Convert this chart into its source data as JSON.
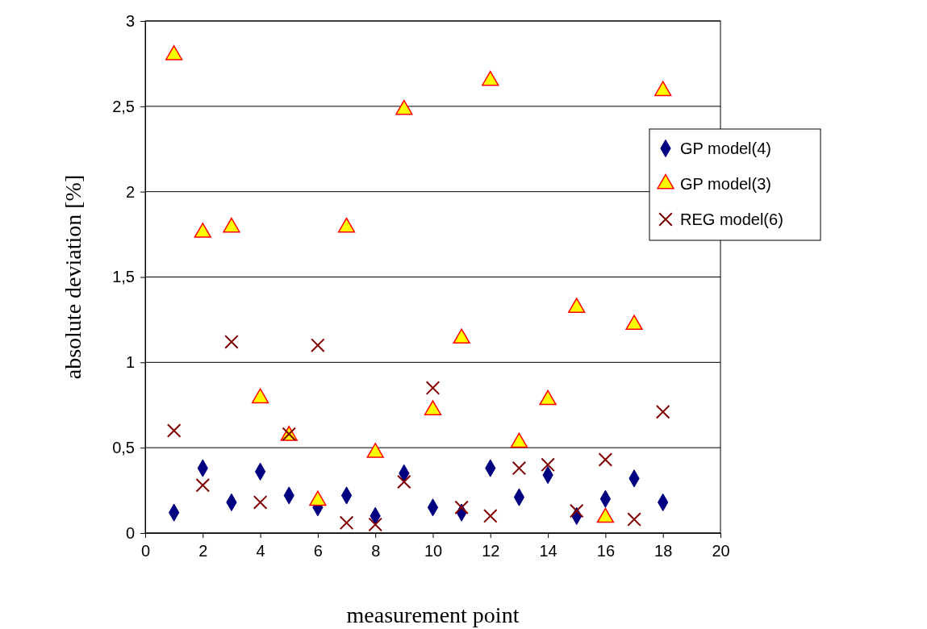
{
  "chart_data": {
    "type": "scatter",
    "xlabel": "measurement point",
    "ylabel": "absolute deviation [%]",
    "x": [
      1,
      2,
      3,
      4,
      5,
      6,
      7,
      8,
      9,
      10,
      11,
      12,
      13,
      14,
      15,
      16,
      17,
      18
    ],
    "xlim": [
      0,
      20
    ],
    "xticks": [
      0,
      2,
      4,
      6,
      8,
      10,
      12,
      14,
      16,
      18,
      20
    ],
    "ylim": [
      0,
      3
    ],
    "yticks": [
      0,
      {
        "value": 0.5,
        "label": "0,5"
      },
      1,
      {
        "value": 1.5,
        "label": "1,5"
      },
      2,
      {
        "value": 2.5,
        "label": "2,5"
      },
      3
    ],
    "grid": "y",
    "legend": "right",
    "series": [
      {
        "name": "GP model(4)",
        "color": "#000080",
        "marker": "diamond",
        "values": [
          0.12,
          0.38,
          0.18,
          0.36,
          0.22,
          0.15,
          0.22,
          0.1,
          0.35,
          0.15,
          0.12,
          0.38,
          0.21,
          0.34,
          0.1,
          0.2,
          0.32,
          0.18
        ]
      },
      {
        "name": "GP model(3)",
        "color": "#ffff00",
        "marker": "triangle",
        "values": [
          2.81,
          1.77,
          1.8,
          0.8,
          0.58,
          0.2,
          1.8,
          0.48,
          2.49,
          0.73,
          1.15,
          2.66,
          0.54,
          0.79,
          1.33,
          0.1,
          1.23,
          2.6
        ]
      },
      {
        "name": "REG model(6)",
        "color": "#800000",
        "marker": "cross",
        "values": [
          0.6,
          0.28,
          1.12,
          0.18,
          0.58,
          1.1,
          0.06,
          0.05,
          0.3,
          0.85,
          0.15,
          0.1,
          0.38,
          0.4,
          0.13,
          0.43,
          0.08,
          0.71
        ]
      }
    ]
  }
}
